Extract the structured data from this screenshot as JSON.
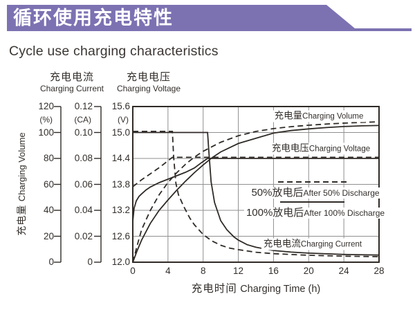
{
  "header": {
    "title_zh": "循环使用充电特性",
    "title_en": "Cycle use charging characteristics"
  },
  "colors": {
    "banner_purple": "#7c72b2",
    "curve_stroke": "#2f2a26",
    "gridline": "#8f8f8f",
    "text": "#332e2b"
  },
  "chart_data": {
    "type": "line",
    "title_zh": "循环使用充电特性",
    "title_en": "Cycle use charging characteristics",
    "grid": true,
    "x_axis": {
      "label_zh": "充电时间",
      "label_en": "Charging Time (h)",
      "range": [
        0,
        28
      ],
      "ticks": [
        0,
        4,
        8,
        12,
        16,
        20,
        24,
        28
      ]
    },
    "y_axes": [
      {
        "id": "volume",
        "name_zh": "充电量",
        "name_en": "Charging Volume",
        "unit": "(%)",
        "range": [
          0,
          120
        ],
        "ticks": [
          "120",
          "100",
          "80",
          "60",
          "40",
          "20",
          "0"
        ]
      },
      {
        "id": "current",
        "name_zh": "充电电流",
        "name_en": "Charging Current",
        "unit": "(CA)",
        "range": [
          0,
          0.12
        ],
        "ticks": [
          "0.12",
          "0.10",
          "0.08",
          "0.06",
          "0.04",
          "0.02",
          "0"
        ]
      },
      {
        "id": "voltage",
        "name_zh": "充电电压",
        "name_en": "Charging Voltage",
        "unit": "(V)",
        "range": [
          12.0,
          15.6
        ],
        "ticks": [
          "15.6",
          "15.0",
          "14.4",
          "13.8",
          "13.2",
          "12.6",
          "12.0"
        ]
      }
    ],
    "labels": {
      "volume": {
        "zh": "充电量",
        "en": "Charging Volume"
      },
      "voltage": {
        "zh": "充电电压",
        "en": "Charging Voltage"
      },
      "legend_50": {
        "zh": "50%放电后",
        "en": "After 50% Discharge"
      },
      "legend_100": {
        "zh": "100%放电后",
        "en": "After 100% Discharge"
      },
      "current": {
        "zh": "充电电流",
        "en": "Charging Current"
      }
    },
    "legend": [
      {
        "style": "dashed",
        "meaning_zh": "50%放电后",
        "meaning_en": "After 50% Discharge"
      },
      {
        "style": "solid",
        "meaning_zh": "100%放电后",
        "meaning_en": "After 100% Discharge"
      }
    ],
    "series": [
      {
        "id": "volume-after-50-discharge",
        "quantity": "Charging Volume (%)",
        "condition": "After 50% Discharge",
        "axis": "volume",
        "style": "dashed",
        "points": [
          [
            0,
            0
          ],
          [
            0.5,
            13
          ],
          [
            1,
            25
          ],
          [
            2,
            40
          ],
          [
            3,
            52
          ],
          [
            4,
            61.5
          ],
          [
            5,
            69
          ],
          [
            6,
            75.5
          ],
          [
            7,
            81
          ],
          [
            8,
            85.5
          ],
          [
            9,
            89
          ],
          [
            10,
            92.5
          ],
          [
            12,
            97.5
          ],
          [
            14,
            100.8
          ],
          [
            16,
            103
          ],
          [
            18,
            104.5
          ],
          [
            20,
            105.6
          ],
          [
            22,
            106.5
          ],
          [
            24,
            107.2
          ],
          [
            26,
            107.8
          ],
          [
            28,
            108.2
          ]
        ]
      },
      {
        "id": "volume-after-100-discharge",
        "quantity": "Charging Volume (%)",
        "condition": "After 100% Discharge",
        "axis": "volume",
        "style": "solid",
        "points": [
          [
            0,
            0
          ],
          [
            0.5,
            9
          ],
          [
            1,
            17
          ],
          [
            2,
            30
          ],
          [
            3,
            40
          ],
          [
            4,
            48
          ],
          [
            5,
            55.5
          ],
          [
            6,
            62.5
          ],
          [
            7,
            69
          ],
          [
            8,
            75
          ],
          [
            9,
            80.5
          ],
          [
            10,
            85
          ],
          [
            12,
            91.5
          ],
          [
            14,
            95.5
          ],
          [
            16,
            99.5
          ],
          [
            18,
            101.5
          ],
          [
            20,
            102.8
          ],
          [
            22,
            103.8
          ],
          [
            24,
            104.6
          ],
          [
            26,
            105.1
          ],
          [
            28,
            105.4
          ]
        ]
      },
      {
        "id": "voltage-after-50-discharge",
        "quantity": "Charging Voltage (V)",
        "condition": "After 50% Discharge",
        "axis": "voltage",
        "style": "dashed",
        "points": [
          [
            0,
            13.72
          ],
          [
            0.5,
            13.8
          ],
          [
            1,
            13.88
          ],
          [
            1.5,
            13.95
          ],
          [
            2,
            14.02
          ],
          [
            2.5,
            14.09
          ],
          [
            3,
            14.16
          ],
          [
            3.5,
            14.24
          ],
          [
            4,
            14.32
          ],
          [
            4.5,
            14.4
          ],
          [
            28,
            14.4
          ]
        ]
      },
      {
        "id": "voltage-after-100-discharge",
        "quantity": "Charging Voltage (V)",
        "condition": "After 100% Discharge",
        "axis": "voltage",
        "style": "solid",
        "points": [
          [
            0,
            12.95
          ],
          [
            0.15,
            13.25
          ],
          [
            0.4,
            13.42
          ],
          [
            0.7,
            13.52
          ],
          [
            1,
            13.58
          ],
          [
            1.5,
            13.67
          ],
          [
            2,
            13.74
          ],
          [
            3,
            13.84
          ],
          [
            4,
            13.92
          ],
          [
            5,
            14.0
          ],
          [
            6,
            14.08
          ],
          [
            7,
            14.18
          ],
          [
            7.8,
            14.3
          ],
          [
            8.5,
            14.4
          ],
          [
            28,
            14.4
          ]
        ]
      },
      {
        "id": "current-after-50-discharge",
        "quantity": "Charging Current (CA)",
        "condition": "After 50% Discharge",
        "axis": "current",
        "style": "dashed",
        "points": [
          [
            0,
            0.1
          ],
          [
            4.5,
            0.1
          ],
          [
            4.65,
            0.08
          ],
          [
            4.9,
            0.06
          ],
          [
            5.2,
            0.051
          ],
          [
            5.8,
            0.042
          ],
          [
            6.5,
            0.033
          ],
          [
            7,
            0.028
          ],
          [
            8,
            0.0205
          ],
          [
            9,
            0.0155
          ],
          [
            10,
            0.0122
          ],
          [
            11,
            0.01
          ],
          [
            12,
            0.0088
          ],
          [
            14,
            0.0068
          ],
          [
            16,
            0.0057
          ],
          [
            20,
            0.0045
          ],
          [
            24,
            0.0038
          ],
          [
            28,
            0.0034
          ]
        ]
      },
      {
        "id": "current-after-100-discharge",
        "quantity": "Charging Current (CA)",
        "condition": "After 100% Discharge",
        "axis": "current",
        "style": "solid",
        "points": [
          [
            0,
            0.1
          ],
          [
            8.5,
            0.1
          ],
          [
            8.65,
            0.085
          ],
          [
            8.9,
            0.062
          ],
          [
            9.3,
            0.046
          ],
          [
            10,
            0.032
          ],
          [
            10.7,
            0.025
          ],
          [
            11.5,
            0.0195
          ],
          [
            12,
            0.017
          ],
          [
            13,
            0.0135
          ],
          [
            14,
            0.0115
          ],
          [
            16,
            0.009
          ],
          [
            18,
            0.0078
          ],
          [
            20,
            0.007
          ],
          [
            24,
            0.006
          ],
          [
            28,
            0.0055
          ]
        ]
      }
    ]
  }
}
